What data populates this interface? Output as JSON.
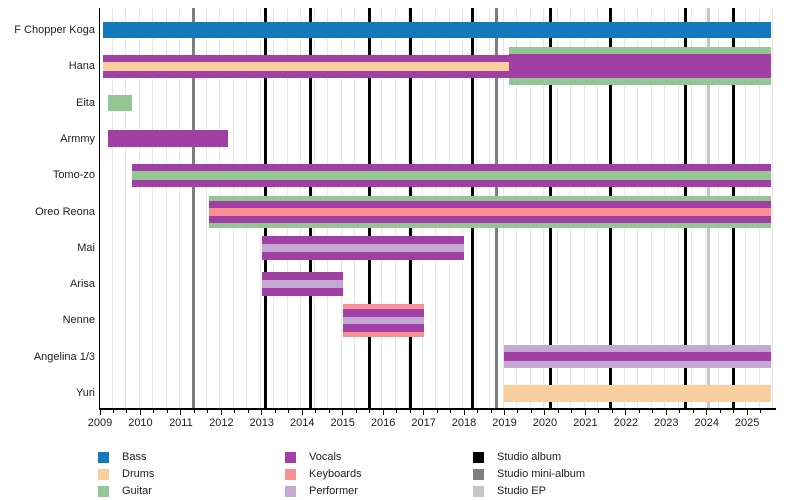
{
  "chart_data": {
    "type": "bar",
    "subtype": "band-membership-timeline-gantt",
    "title": "",
    "x_axis": {
      "range_start": 2009,
      "range_end": 2025.7,
      "bars_end": 2025.6,
      "year_labels": [
        "2009",
        "2010",
        "2011",
        "2012",
        "2013",
        "2014",
        "2015",
        "2016",
        "2017",
        "2018",
        "2019",
        "2020",
        "2021",
        "2022",
        "2023",
        "2024",
        "2025"
      ],
      "minor_tick_interval_years": 0.3333
    },
    "members": [
      {
        "name": "F Chopper Koga",
        "segments": [
          {
            "start": 2009.08,
            "end": 2025.6,
            "stripes": [
              {
                "role": "bass",
                "h": 16
              }
            ]
          }
        ]
      },
      {
        "name": "Hana",
        "segments": [
          {
            "start": 2009.08,
            "end": 2019.1,
            "stripes": [
              {
                "role": "vocals",
                "h": 7
              },
              {
                "role": "drums",
                "h": 9
              },
              {
                "role": "vocals",
                "h": 7
              }
            ]
          },
          {
            "start": 2019.1,
            "end": 2025.6,
            "stripes": [
              {
                "role": "guitar",
                "h": 7
              },
              {
                "role": "vocals",
                "h": 24
              },
              {
                "role": "guitar",
                "h": 7
              }
            ]
          }
        ]
      },
      {
        "name": "Eita",
        "segments": [
          {
            "start": 2009.2,
            "end": 2009.8,
            "stripes": [
              {
                "role": "guitar",
                "h": 16
              }
            ]
          }
        ]
      },
      {
        "name": "Armmy",
        "segments": [
          {
            "start": 2009.2,
            "end": 2012.16,
            "stripes": [
              {
                "role": "vocals",
                "h": 17
              }
            ]
          }
        ]
      },
      {
        "name": "Tomo-zo",
        "segments": [
          {
            "start": 2009.8,
            "end": 2025.6,
            "stripes": [
              {
                "role": "vocals",
                "h": 7
              },
              {
                "role": "guitar",
                "h": 9
              },
              {
                "role": "vocals",
                "h": 7
              }
            ]
          }
        ]
      },
      {
        "name": "Oreo Reona",
        "segments": [
          {
            "start": 2011.7,
            "end": 2025.6,
            "stripes": [
              {
                "role": "guitar",
                "h": 5
              },
              {
                "role": "vocals",
                "h": 7
              },
              {
                "role": "keyboards",
                "h": 8
              },
              {
                "role": "vocals",
                "h": 7
              },
              {
                "role": "guitar",
                "h": 5
              }
            ]
          }
        ]
      },
      {
        "name": "Mai",
        "segments": [
          {
            "start": 2013.0,
            "end": 2018.0,
            "stripes": [
              {
                "role": "vocals",
                "h": 8
              },
              {
                "role": "performer",
                "h": 8
              },
              {
                "role": "vocals",
                "h": 8
              }
            ]
          }
        ]
      },
      {
        "name": "Arisa",
        "segments": [
          {
            "start": 2013.0,
            "end": 2015.0,
            "stripes": [
              {
                "role": "vocals",
                "h": 8
              },
              {
                "role": "performer",
                "h": 8
              },
              {
                "role": "vocals",
                "h": 8
              }
            ]
          }
        ]
      },
      {
        "name": "Nenne",
        "segments": [
          {
            "start": 2015.0,
            "end": 2017.0,
            "stripes": [
              {
                "role": "keyboards",
                "h": 5
              },
              {
                "role": "vocals",
                "h": 8
              },
              {
                "role": "performer",
                "h": 7
              },
              {
                "role": "vocals",
                "h": 8
              },
              {
                "role": "keyboards",
                "h": 5
              }
            ]
          }
        ]
      },
      {
        "name": "Angelina 1/3",
        "segments": [
          {
            "start": 2019.0,
            "end": 2025.6,
            "stripes": [
              {
                "role": "performer",
                "h": 7
              },
              {
                "role": "vocals",
                "h": 9
              },
              {
                "role": "performer",
                "h": 7
              }
            ]
          }
        ]
      },
      {
        "name": "Yuri",
        "segments": [
          {
            "start": 2019.0,
            "end": 2025.6,
            "stripes": [
              {
                "role": "drums",
                "h": 17
              }
            ]
          }
        ]
      }
    ],
    "releases": {
      "album": [
        2013.1,
        2014.2,
        2015.67,
        2016.67,
        2018.22,
        2020.14,
        2021.62,
        2023.48,
        2024.67
      ],
      "mini": [
        2011.3,
        2018.8
      ],
      "ep": [
        2024.05
      ]
    },
    "legend_position": "bottom",
    "grid": "faint vertical lines every third of a year"
  },
  "colors": {
    "bass": "#1478bd",
    "drums": "#f8cf9d",
    "guitar": "#95c795",
    "vocals": "#a23fa5",
    "keyboards": "#f88f94",
    "performer": "#c3a9d1",
    "album": "#000000",
    "mini": "#7e7e7e",
    "ep": "#c6c6c6",
    "gridline": "#e7e7e9",
    "axis": "#000000",
    "text": "#202122"
  },
  "legend": {
    "columns": [
      {
        "items": [
          {
            "label": "Bass",
            "role": "bass"
          },
          {
            "label": "Drums",
            "role": "drums"
          },
          {
            "label": "Guitar",
            "role": "guitar"
          }
        ]
      },
      {
        "items": [
          {
            "label": "Vocals",
            "role": "vocals"
          },
          {
            "label": "Keyboards",
            "role": "keyboards"
          },
          {
            "label": "Performer",
            "role": "performer"
          }
        ]
      },
      {
        "items": [
          {
            "label": "Studio album",
            "role": "album"
          },
          {
            "label": "Studio mini-album",
            "role": "mini"
          },
          {
            "label": "Studio EP",
            "role": "ep"
          }
        ]
      }
    ]
  }
}
